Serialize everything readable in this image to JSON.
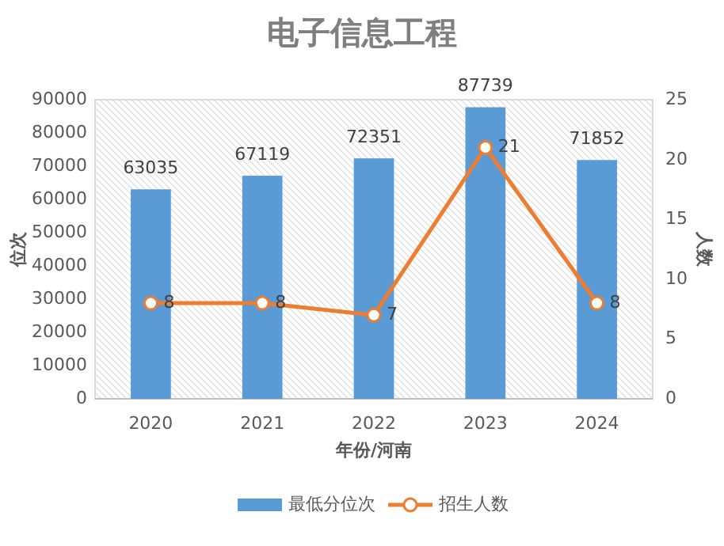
{
  "chart_data": {
    "type": "bar",
    "title": "电子信息工程",
    "xlabel": "年份/河南",
    "ylabel": "位次",
    "y2label": "人数",
    "categories": [
      "2020",
      "2021",
      "2022",
      "2023",
      "2024"
    ],
    "series": [
      {
        "name": "最低分位次",
        "color": "#5b9bd5",
        "values": [
          63035,
          67119,
          72351,
          87739,
          71852
        ]
      },
      {
        "name": "招生人数",
        "type": "line",
        "axis": "y2",
        "color": "#ed7d31",
        "values": [
          8,
          8,
          7,
          21,
          8
        ]
      }
    ],
    "ylim": [
      0,
      90000
    ],
    "yticks": [
      0,
      10000,
      20000,
      30000,
      40000,
      50000,
      60000,
      70000,
      80000,
      90000
    ],
    "y2lim": [
      0,
      25
    ],
    "y2ticks": [
      0,
      5,
      10,
      15,
      20,
      25
    ],
    "data_labels": true,
    "legend": "bottom",
    "marker": "circle",
    "line_style": "solid"
  }
}
